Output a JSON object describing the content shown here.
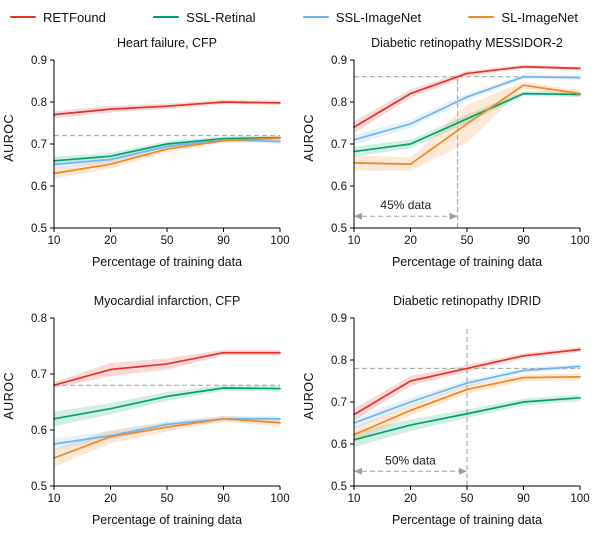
{
  "figure": {
    "legend": [
      {
        "label": "RETFound",
        "color": "#e63228"
      },
      {
        "label": "SSL-Retinal",
        "color": "#00a26b"
      },
      {
        "label": "SSL-ImageNet",
        "color": "#6fb4ed"
      },
      {
        "label": "SL-ImageNet",
        "color": "#f6861f"
      }
    ],
    "dashed_line_color": "#a0a0a0",
    "axis_color": "#000000"
  },
  "chart_data": [
    {
      "type": "line",
      "title": "Heart failure, CFP",
      "xlabel": "Percentage of training data",
      "ylabel": "AUROC",
      "x": [
        10,
        20,
        50,
        90,
        100
      ],
      "ylim": [
        0.5,
        0.9
      ],
      "yticks": [
        0.5,
        0.6,
        0.7,
        0.8,
        0.9
      ],
      "grid": false,
      "legend_position": "figure-top",
      "series": [
        {
          "name": "RETFound",
          "color": "#e63228",
          "values": [
            0.77,
            0.783,
            0.79,
            0.8,
            0.798
          ],
          "band": [
            0.008,
            0.008,
            0.006,
            0.005,
            0.005
          ]
        },
        {
          "name": "SSL-Retinal",
          "color": "#00a26b",
          "values": [
            0.66,
            0.671,
            0.7,
            0.713,
            0.715
          ],
          "band": [
            0.01,
            0.008,
            0.007,
            0.005,
            0.005
          ]
        },
        {
          "name": "SSL-ImageNet",
          "color": "#6fb4ed",
          "values": [
            0.651,
            0.663,
            0.694,
            0.71,
            0.706
          ],
          "band": [
            0.01,
            0.008,
            0.006,
            0.005,
            0.005
          ]
        },
        {
          "name": "SL-ImageNet",
          "color": "#f6861f",
          "values": [
            0.63,
            0.652,
            0.688,
            0.708,
            0.714
          ],
          "band": [
            0.013,
            0.01,
            0.008,
            0.005,
            0.005
          ]
        }
      ],
      "hline": {
        "y": 0.72,
        "x_from": 10,
        "x_to": 100
      },
      "vline": null,
      "annotation": null
    },
    {
      "type": "line",
      "title": "Diabetic retinopathy MESSIDOR-2",
      "xlabel": "Percentage of training data",
      "ylabel": "AUROC",
      "x": [
        10,
        20,
        50,
        90,
        100
      ],
      "ylim": [
        0.5,
        0.9
      ],
      "yticks": [
        0.5,
        0.6,
        0.7,
        0.8,
        0.9
      ],
      "grid": false,
      "legend_position": "figure-top",
      "series": [
        {
          "name": "RETFound",
          "color": "#e63228",
          "values": [
            0.74,
            0.82,
            0.868,
            0.884,
            0.88
          ],
          "band": [
            0.014,
            0.01,
            0.006,
            0.004,
            0.004
          ]
        },
        {
          "name": "SSL-Retinal",
          "color": "#00a26b",
          "values": [
            0.682,
            0.7,
            0.76,
            0.82,
            0.818
          ],
          "band": [
            0.012,
            0.01,
            0.01,
            0.006,
            0.006
          ]
        },
        {
          "name": "SSL-ImageNet",
          "color": "#6fb4ed",
          "values": [
            0.71,
            0.748,
            0.812,
            0.86,
            0.858
          ],
          "band": [
            0.012,
            0.01,
            0.008,
            0.005,
            0.005
          ]
        },
        {
          "name": "SL-ImageNet",
          "color": "#f6861f",
          "values": [
            0.655,
            0.652,
            0.748,
            0.84,
            0.82
          ],
          "band": [
            0.018,
            0.016,
            0.045,
            0.008,
            0.008
          ]
        }
      ],
      "hline": {
        "y": 0.86,
        "x_from": 10,
        "x_to": 90
      },
      "vline": {
        "x": 45,
        "y_from": 0.5,
        "y_to": 0.86
      },
      "annotation": {
        "text": "45% data",
        "y": 0.528,
        "x_from": 10,
        "x_to": 45
      }
    },
    {
      "type": "line",
      "title": "Myocardial infarction, CFP",
      "xlabel": "Percentage of training data",
      "ylabel": "AUROC",
      "x": [
        10,
        20,
        50,
        90,
        100
      ],
      "ylim": [
        0.5,
        0.8
      ],
      "yticks": [
        0.5,
        0.6,
        0.7,
        0.8
      ],
      "grid": false,
      "legend_position": "figure-top",
      "series": [
        {
          "name": "RETFound",
          "color": "#e63228",
          "values": [
            0.68,
            0.708,
            0.718,
            0.738,
            0.738
          ],
          "band": [
            0.005,
            0.012,
            0.01,
            0.005,
            0.005
          ]
        },
        {
          "name": "SSL-Retinal",
          "color": "#00a26b",
          "values": [
            0.62,
            0.638,
            0.66,
            0.675,
            0.674
          ],
          "band": [
            0.013,
            0.01,
            0.008,
            0.005,
            0.005
          ]
        },
        {
          "name": "SSL-ImageNet",
          "color": "#6fb4ed",
          "values": [
            0.575,
            0.59,
            0.61,
            0.62,
            0.62
          ],
          "band": [
            0.01,
            0.008,
            0.006,
            0.005,
            0.005
          ]
        },
        {
          "name": "SL-ImageNet",
          "color": "#f6861f",
          "values": [
            0.55,
            0.588,
            0.605,
            0.62,
            0.613
          ],
          "band": [
            0.016,
            0.012,
            0.008,
            0.005,
            0.008
          ]
        }
      ],
      "hline": {
        "y": 0.68,
        "x_from": 10,
        "x_to": 100
      },
      "vline": null,
      "annotation": null
    },
    {
      "type": "line",
      "title": "Diabetic retinopathy IDRID",
      "xlabel": "Percentage of training data",
      "ylabel": "AUROC",
      "x": [
        10,
        20,
        50,
        90,
        100
      ],
      "ylim": [
        0.5,
        0.9
      ],
      "yticks": [
        0.5,
        0.6,
        0.7,
        0.8,
        0.9
      ],
      "grid": false,
      "legend_position": "figure-top",
      "series": [
        {
          "name": "RETFound",
          "color": "#e63228",
          "values": [
            0.67,
            0.75,
            0.78,
            0.81,
            0.825
          ],
          "band": [
            0.014,
            0.012,
            0.008,
            0.006,
            0.006
          ]
        },
        {
          "name": "SSL-Retinal",
          "color": "#00a26b",
          "values": [
            0.61,
            0.645,
            0.672,
            0.7,
            0.71
          ],
          "band": [
            0.018,
            0.014,
            0.01,
            0.008,
            0.008
          ]
        },
        {
          "name": "SSL-ImageNet",
          "color": "#6fb4ed",
          "values": [
            0.65,
            0.7,
            0.745,
            0.775,
            0.785
          ],
          "band": [
            0.014,
            0.01,
            0.008,
            0.006,
            0.006
          ]
        },
        {
          "name": "SL-ImageNet",
          "color": "#f6861f",
          "values": [
            0.622,
            0.68,
            0.73,
            0.758,
            0.76
          ],
          "band": [
            0.018,
            0.012,
            0.01,
            0.008,
            0.008
          ]
        }
      ],
      "hline": {
        "y": 0.78,
        "x_from": 10,
        "x_to": 100
      },
      "vline": {
        "x": 50,
        "y_from": 0.5,
        "y_to": 0.875
      },
      "annotation": {
        "text": "50% data",
        "y": 0.535,
        "x_from": 10,
        "x_to": 50
      }
    }
  ]
}
